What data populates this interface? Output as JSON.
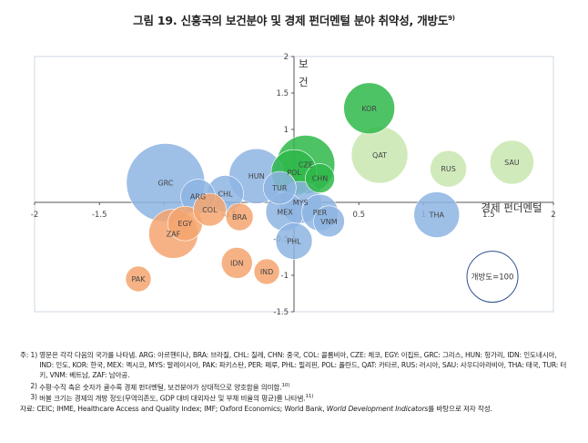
{
  "title": "그림 19. 신흥국의 보건분야 및 경제 펀더멘털 분야 취약성, 개방도",
  "title_sup": "9)",
  "chart_data": {
    "type": "bubble",
    "x_axis_label": "경제 펀더멘털",
    "y_axis_label": [
      "보",
      "건"
    ],
    "xlim": [
      -2,
      2
    ],
    "ylim": [
      -1.5,
      2
    ],
    "x_ticks": [
      -2,
      -1.5,
      -1,
      -0.5,
      0.5,
      1,
      1.5,
      2
    ],
    "y_ticks": [
      2,
      1.5,
      1,
      0.5,
      -0.5,
      -1,
      -1.5
    ],
    "colors": {
      "blue": "#8db4e2",
      "orange": "#f4a46f",
      "green_dark": "#2fb84a",
      "green_light": "#c9e6b0",
      "plot_border": "#cfd8e6"
    },
    "points": [
      {
        "label": "KOR",
        "x": 0.58,
        "y": 1.29,
        "size": 28,
        "color": "green_dark"
      },
      {
        "label": "QAT",
        "x": 0.66,
        "y": 0.65,
        "size": 31,
        "color": "green_light"
      },
      {
        "label": "RUS",
        "x": 1.19,
        "y": 0.46,
        "size": 20,
        "color": "green_light"
      },
      {
        "label": "SAU",
        "x": 1.68,
        "y": 0.55,
        "size": 24,
        "color": "green_light"
      },
      {
        "label": "CZE",
        "x": 0.09,
        "y": 0.52,
        "size": 32,
        "color": "green_dark"
      },
      {
        "label": "POL",
        "x": 0.0,
        "y": 0.41,
        "size": 25,
        "color": "green_dark"
      },
      {
        "label": "CHN",
        "x": 0.2,
        "y": 0.33,
        "size": 16,
        "color": "green_dark"
      },
      {
        "label": "GRC",
        "x": -0.99,
        "y": 0.27,
        "size": 43,
        "color": "blue"
      },
      {
        "label": "HUN",
        "x": -0.29,
        "y": 0.36,
        "size": 30,
        "color": "blue"
      },
      {
        "label": "TUR",
        "x": -0.11,
        "y": 0.2,
        "size": 18,
        "color": "blue"
      },
      {
        "label": "CHL",
        "x": -0.53,
        "y": 0.12,
        "size": 20,
        "color": "blue"
      },
      {
        "label": "ARG",
        "x": -0.74,
        "y": 0.08,
        "size": 19,
        "color": "blue"
      },
      {
        "label": "MYS",
        "x": 0.05,
        "y": 0.0,
        "size": 23,
        "color": "blue"
      },
      {
        "label": "MEX",
        "x": -0.07,
        "y": -0.13,
        "size": 21,
        "color": "blue"
      },
      {
        "label": "PER",
        "x": 0.2,
        "y": -0.14,
        "size": 20,
        "color": "blue"
      },
      {
        "label": "VNM",
        "x": 0.27,
        "y": -0.26,
        "size": 17,
        "color": "blue"
      },
      {
        "label": "THA",
        "x": 1.1,
        "y": -0.17,
        "size": 25,
        "color": "blue"
      },
      {
        "label": "PHL",
        "x": 0.0,
        "y": -0.53,
        "size": 20,
        "color": "blue"
      },
      {
        "label": "COL",
        "x": -0.65,
        "y": -0.1,
        "size": 18,
        "color": "orange"
      },
      {
        "label": "BRA",
        "x": -0.42,
        "y": -0.2,
        "size": 15,
        "color": "orange"
      },
      {
        "label": "EGY",
        "x": -0.84,
        "y": -0.29,
        "size": 19,
        "color": "orange"
      },
      {
        "label": "ZAF",
        "x": -0.93,
        "y": -0.43,
        "size": 27,
        "color": "orange"
      },
      {
        "label": "IDN",
        "x": -0.44,
        "y": -0.83,
        "size": 17,
        "color": "orange"
      },
      {
        "label": "IND",
        "x": -0.21,
        "y": -0.95,
        "size": 14,
        "color": "orange"
      },
      {
        "label": "PAK",
        "x": -1.2,
        "y": -1.05,
        "size": 14,
        "color": "orange"
      }
    ],
    "size_legend": {
      "label": "개방도=100",
      "x": 1.53,
      "y": -1.02,
      "size": 28
    }
  },
  "notes": [
    {
      "lead": "주: 1) ",
      "text": "영문은 각각 다음의 국가를 나타냄. ARG: 아르헨티나, BRA: 브라질, CHL: 칠레, CHN: 중국, COL: 콜롬비아, CZE: 체코, EGY: 이집트, GRC: 그리스, HUN: 헝가리, IDN: 인도네시아, IND: 인도, KOR: 한국, MEX: 멕시코, MYS: 말레이시아, PAK: 파키스탄, PER: 페루, PHL: 필리핀, POL: 폴란드, QAT: 카타르, RUS: 러시아, SAU: 사우디아라비아, THA: 태국, TUR: 터키, VNM: 베트남, ZAF: 남아공.",
      "sup": ""
    },
    {
      "lead": "     2) ",
      "text": "수평·수직 축은 숫자가 클수록 경제 펀더멘털, 보건분야가 상대적으로 양호함을 의미함.",
      "sup": "10)"
    },
    {
      "lead": "     3) ",
      "text": "버블 크기는 경제의 개방 정도(무역의존도, GDP 대비 대외자산 및 부채 비율의 평균)를 나타냄.",
      "sup": "11)"
    }
  ],
  "source": {
    "lead": "자료: ",
    "text_before": "CEIC; IHME, Healthcare Access and Quality Index; IMF; Oxford Economics; World Bank, ",
    "text_italic": "World Development Indicators",
    "text_after": "를 바탕으로 저자 작성."
  }
}
